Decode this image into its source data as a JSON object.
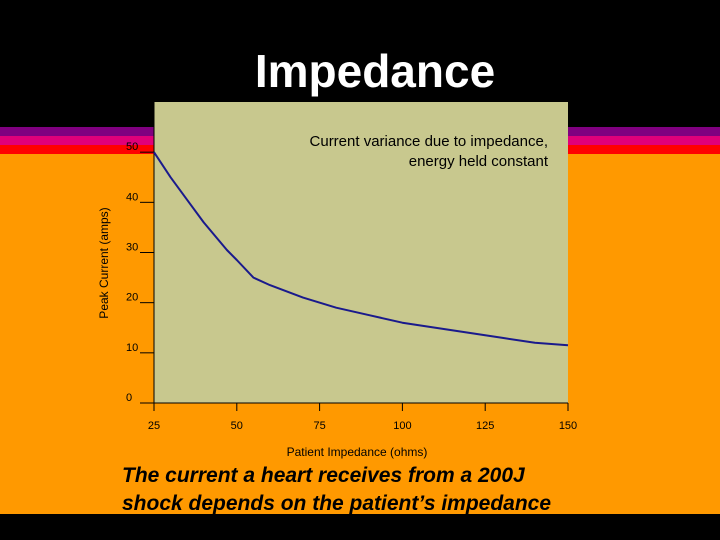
{
  "slide": {
    "title": "Impedance",
    "caption_lines": [
      "The current a heart receives from a 200J",
      "shock depends on the patient’s impedance"
    ]
  },
  "colors": {
    "background": "#000000",
    "stripe_purple": "#800080",
    "stripe_magenta": "#E0007A",
    "stripe_red": "#FF0000",
    "orange": "#FF9900",
    "plot_area": "#C8C88E",
    "line": "#1A1A8C"
  },
  "chart_data": {
    "type": "line",
    "title": "",
    "annotation_lines": [
      "Current variance due to impedance,",
      "energy held constant"
    ],
    "xlabel": "Patient Impedance (ohms)",
    "ylabel": "Peak Current (amps)",
    "xlim": [
      25,
      150
    ],
    "ylim": [
      0,
      60
    ],
    "xticks": [
      25,
      50,
      75,
      100,
      125,
      150
    ],
    "yticks": [
      0,
      10,
      20,
      30,
      40,
      50,
      60
    ],
    "grid": false,
    "series": [
      {
        "x": [
          25,
          30,
          35,
          40,
          47,
          50,
          55,
          60,
          70,
          80,
          90,
          100,
          110,
          120,
          130,
          140,
          150
        ],
        "y": [
          50,
          45,
          40.5,
          36,
          30.5,
          28.5,
          25,
          23.5,
          21,
          19,
          17.5,
          16,
          15,
          14,
          13,
          12,
          11.5
        ]
      }
    ]
  }
}
